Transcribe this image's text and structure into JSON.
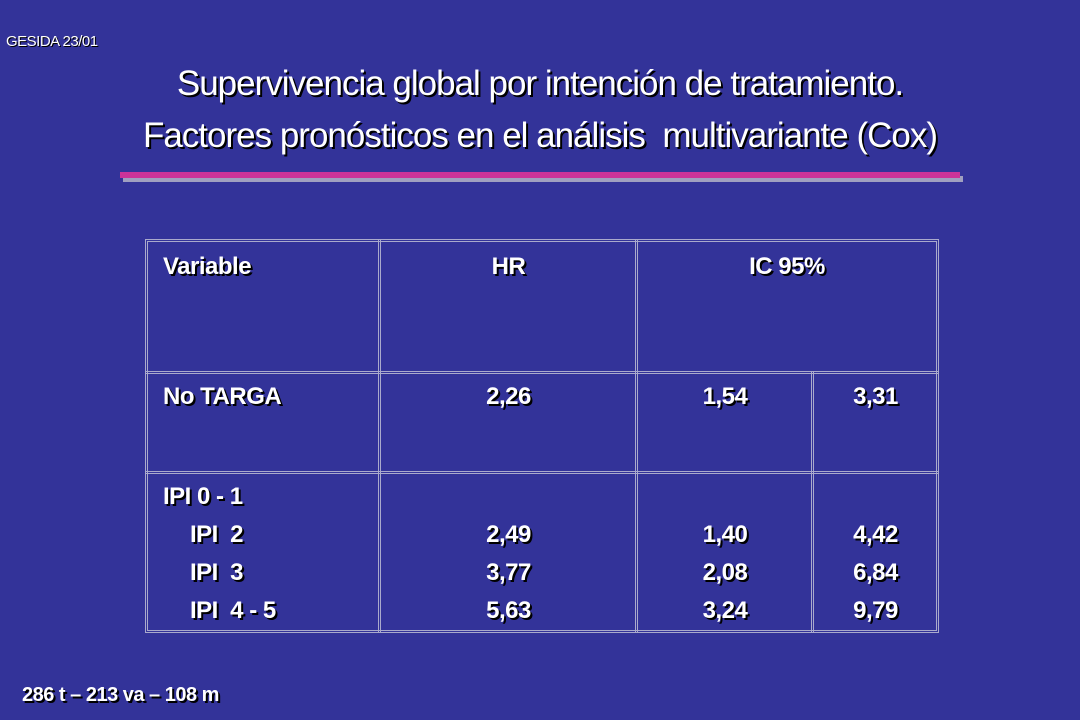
{
  "header": {
    "code": "GESIDA 23/01",
    "title_lines": [
      "Supervivencia global por intención de tratamiento.",
      "Factores pronósticos en el análisis  multivariante (Cox)"
    ]
  },
  "table": {
    "headers": [
      "Variable",
      "HR",
      "IC 95%"
    ],
    "rows": [
      [
        "No TARGA",
        "2,26",
        "1,54",
        "3,31"
      ],
      [
        [
          "IPI 0 - 1",
          "IPI  2",
          "IPI  3",
          "IPI  4 - 5"
        ],
        [
          "2,49",
          "3,77",
          "5,63"
        ],
        [
          "1,40",
          "2,08",
          "3,24"
        ],
        [
          "4,42",
          "6,84",
          "9,79"
        ]
      ]
    ]
  },
  "footer": "286 t – 213 va – 108 m"
}
